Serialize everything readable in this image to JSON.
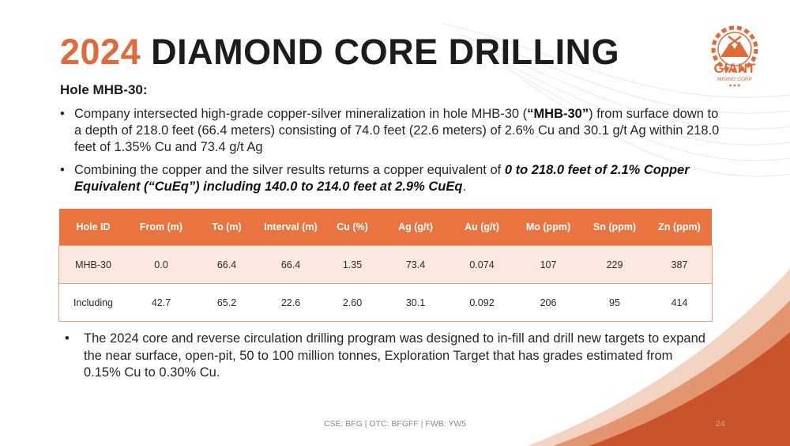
{
  "title": {
    "year": "2024",
    "rest": "DIAMOND CORE DRILLING"
  },
  "logo": {
    "text": "GIANT",
    "subtext": "MINING CORP",
    "icon": "mountain-gear-logo"
  },
  "subtitle": "Hole MHB-30:",
  "bullets": {
    "b1": {
      "part1": "Company intersected high-grade copper-silver mineralization in hole MHB-30 (",
      "bold": "“MHB-30”",
      "part2": ") from surface down to a depth of 218.0 feet (66.4 meters) consisting of 74.0 feet (22.6 meters) of 2.6% Cu and 30.1 g/t Ag within 218.0 feet of 1.35% Cu and 73.4 g/t Ag"
    },
    "b2": {
      "part1": "Combining the copper and the silver results returns a copper equivalent of ",
      "bold_italic": "0 to 218.0 feet of 2.1% Copper Equivalent (“CuEq”) including 140.0 to 214.0 feet at 2.9% CuEq",
      "part2": "."
    },
    "b3": "The 2024 core and reverse circulation drilling program was designed to in-fill and drill new targets to expand the near surface, open-pit, 50 to 100 million tonnes, Exploration Target that has grades estimated from 0.15% Cu to 0.30% Cu."
  },
  "table": {
    "headers": [
      "Hole ID",
      "From (m)",
      "To (m)",
      "Interval (m)",
      "Cu (%)",
      "Ag (g/t)",
      "Au (g/t)",
      "Mo (ppm)",
      "Sn (ppm)",
      "Zn (ppm)"
    ],
    "rows": [
      [
        "MHB-30",
        "0.0",
        "66.4",
        "66.4",
        "1.35",
        "73.4",
        "0.074",
        "107",
        "229",
        "387"
      ],
      [
        "Including",
        "42.7",
        "65.2",
        "22.6",
        "2.60",
        "30.1",
        "0.092",
        "206",
        "95",
        "414"
      ]
    ]
  },
  "footer": "CSE: BFG | OTC: BFGFF | FWB: YW5",
  "page_number": "24",
  "colors": {
    "accent": "#e06a3b",
    "header_fill": "#e9743f",
    "row_tint": "#fbe9e1",
    "wave_dark": "#c9532a"
  }
}
